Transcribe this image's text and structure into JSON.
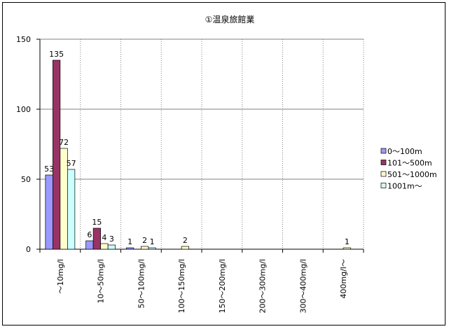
{
  "chart_data": {
    "type": "bar",
    "title": "①温泉旅館業",
    "categories": [
      "～10mg/l",
      "10～50mg/l",
      "50～100mg/l",
      "100～150mg/l",
      "150～200mg/l",
      "200～300mg/l",
      "300～400mg/l",
      "400mg/l～"
    ],
    "series": [
      {
        "name": "0～100m",
        "color": "#9999ff",
        "values": [
          53,
          6,
          1,
          null,
          null,
          null,
          null,
          null
        ]
      },
      {
        "name": "101～500m",
        "color": "#993366",
        "values": [
          135,
          15,
          null,
          null,
          null,
          null,
          null,
          null
        ]
      },
      {
        "name": "501～1000m",
        "color": "#ffffcc",
        "values": [
          72,
          4,
          2,
          2,
          null,
          null,
          null,
          1
        ]
      },
      {
        "name": "1001m～",
        "color": "#ccffff",
        "values": [
          57,
          3,
          1,
          null,
          null,
          null,
          null,
          null
        ]
      }
    ],
    "ylim": [
      0,
      150
    ],
    "yticks": [
      0,
      50,
      100,
      150
    ],
    "grid": true,
    "legend": "right",
    "background": "#ffffff",
    "gridline_color": "#808080"
  }
}
